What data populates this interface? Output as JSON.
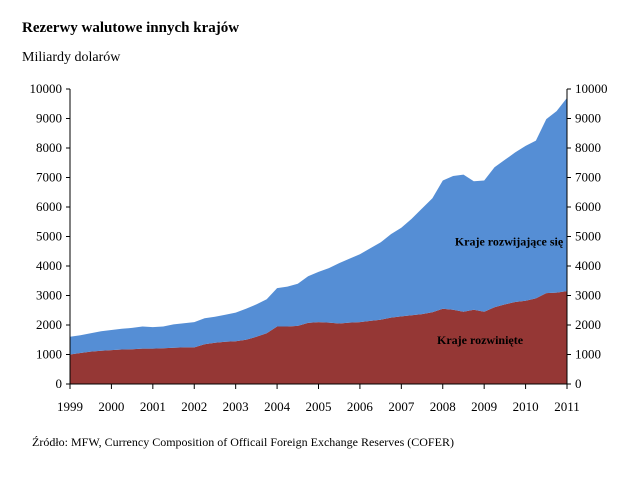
{
  "title": "Rezerwy walutowe innych krajów",
  "subtitle": "Miliardy dolarów",
  "source": "Źródło: MFW, Currency Composition of Officail Foreign Exchange Reserves (COFER)",
  "chart_data": {
    "type": "area",
    "stacked": true,
    "x": [
      1999.0,
      1999.25,
      1999.5,
      1999.75,
      2000.0,
      2000.25,
      2000.5,
      2000.75,
      2001.0,
      2001.25,
      2001.5,
      2001.75,
      2002.0,
      2002.25,
      2002.5,
      2002.75,
      2003.0,
      2003.25,
      2003.5,
      2003.75,
      2004.0,
      2004.25,
      2004.5,
      2004.75,
      2005.0,
      2005.25,
      2005.5,
      2005.75,
      2006.0,
      2006.25,
      2006.5,
      2006.75,
      2007.0,
      2007.25,
      2007.5,
      2007.75,
      2008.0,
      2008.25,
      2008.5,
      2008.75,
      2009.0,
      2009.25,
      2009.5,
      2009.75,
      2010.0,
      2010.25,
      2010.5,
      2010.75,
      2011.0
    ],
    "series": [
      {
        "name": "Kraje rozwinięte",
        "color": "#953735",
        "values": [
          1000,
          1050,
          1100,
          1130,
          1150,
          1170,
          1180,
          1200,
          1200,
          1210,
          1230,
          1240,
          1240,
          1350,
          1400,
          1430,
          1450,
          1500,
          1600,
          1720,
          1950,
          1950,
          1970,
          2070,
          2100,
          2080,
          2050,
          2080,
          2100,
          2140,
          2180,
          2250,
          2290,
          2330,
          2370,
          2430,
          2550,
          2520,
          2450,
          2520,
          2450,
          2600,
          2700,
          2780,
          2820,
          2900,
          3080,
          3100,
          3150
        ]
      },
      {
        "name": "Kraje rozwijające się",
        "color": "#558ed5",
        "values": [
          600,
          600,
          620,
          660,
          680,
          700,
          720,
          750,
          730,
          740,
          790,
          820,
          860,
          880,
          880,
          920,
          970,
          1050,
          1100,
          1150,
          1300,
          1350,
          1430,
          1580,
          1700,
          1850,
          2050,
          2170,
          2300,
          2460,
          2620,
          2830,
          3010,
          3270,
          3580,
          3870,
          4350,
          4530,
          4650,
          4350,
          4450,
          4750,
          4900,
          5070,
          5250,
          5350,
          5900,
          6150,
          6550
        ]
      }
    ],
    "xlim": [
      1999,
      2011
    ],
    "ylim": [
      0,
      10000
    ],
    "x_ticks": [
      1999,
      2000,
      2001,
      2002,
      2003,
      2004,
      2005,
      2006,
      2007,
      2008,
      2009,
      2010,
      2011
    ],
    "x_tick_labels": [
      "1999",
      "2000",
      "2001",
      "2002",
      "2003",
      "2004",
      "2005",
      "2006",
      "2007",
      "2008",
      "2009",
      "2010",
      "2011"
    ],
    "y_ticks": [
      0,
      1000,
      2000,
      3000,
      4000,
      5000,
      6000,
      7000,
      8000,
      9000,
      10000
    ],
    "y_tick_labels": [
      "0",
      "1000",
      "2000",
      "3000",
      "4000",
      "5000",
      "6000",
      "7000",
      "8000",
      "9000",
      "10000"
    ],
    "secondary_y_axis": true,
    "grid": false,
    "legend": "none",
    "in_chart_labels": [
      {
        "text": "Kraje rozwijające się",
        "series": 1,
        "x": 2009.6,
        "y": 4700
      },
      {
        "text": "Kraje rozwinięte",
        "series": 0,
        "x": 2008.9,
        "y": 1350
      }
    ]
  }
}
